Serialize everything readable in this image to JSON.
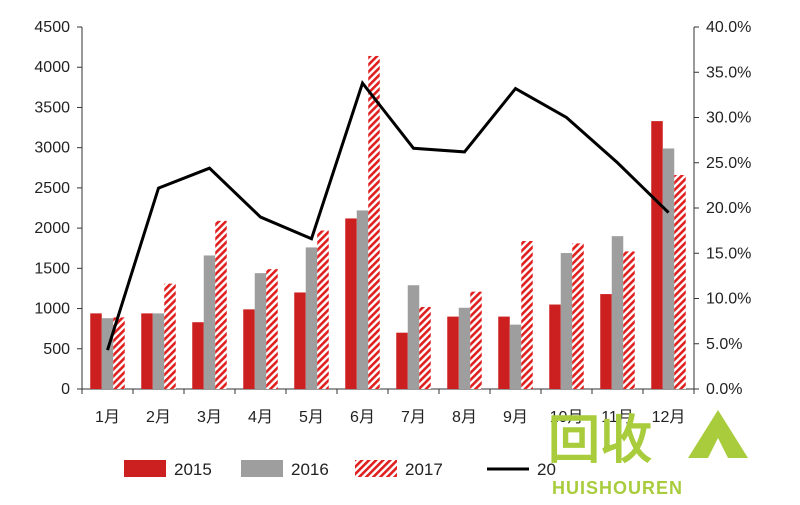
{
  "chart_data": {
    "type": "bar",
    "categories": [
      "1月",
      "2月",
      "3月",
      "4月",
      "5月",
      "6月",
      "7月",
      "8月",
      "9月",
      "10月",
      "11月",
      "12月"
    ],
    "series": [
      {
        "name": "2015",
        "kind": "bar",
        "color": "#cc1f1f",
        "pattern": "solid",
        "values": [
          940,
          940,
          830,
          990,
          1200,
          2120,
          700,
          900,
          900,
          1050,
          1180,
          3330
        ]
      },
      {
        "name": "2016",
        "kind": "bar",
        "color": "#9e9e9e",
        "pattern": "solid",
        "values": [
          880,
          940,
          1660,
          1440,
          1760,
          2220,
          1290,
          1010,
          800,
          1690,
          1900,
          2990
        ]
      },
      {
        "name": "2017",
        "kind": "bar",
        "color": "#e01f1f",
        "pattern": "hatched",
        "values": [
          890,
          1310,
          2090,
          1490,
          1970,
          4140,
          1020,
          1210,
          1840,
          1810,
          1710,
          2660
        ]
      },
      {
        "name": "",
        "kind": "line",
        "axis": "right",
        "color": "#000000",
        "values": [
          4.3,
          22.2,
          24.4,
          19.0,
          16.6,
          33.8,
          26.6,
          26.2,
          33.2,
          30.0,
          25.0,
          19.5
        ]
      }
    ],
    "left_axis": {
      "ylim": [
        0,
        4500
      ],
      "ticks": [
        "0",
        "500",
        "1000",
        "1500",
        "2000",
        "2500",
        "3000",
        "3500",
        "4000",
        "4500"
      ]
    },
    "right_axis": {
      "ylim": [
        0,
        40
      ],
      "ticks": [
        "0.0%",
        "5.0%",
        "10.0%",
        "15.0%",
        "20.0%",
        "25.0%",
        "30.0%",
        "35.0%",
        "40.0%"
      ]
    },
    "legend": {
      "placement": "bottom",
      "entries": [
        "2015",
        "2016",
        "2017",
        "20"
      ]
    },
    "grid": false
  },
  "watermark": {
    "main": "回收",
    "sub": "HUISHOUREN"
  }
}
